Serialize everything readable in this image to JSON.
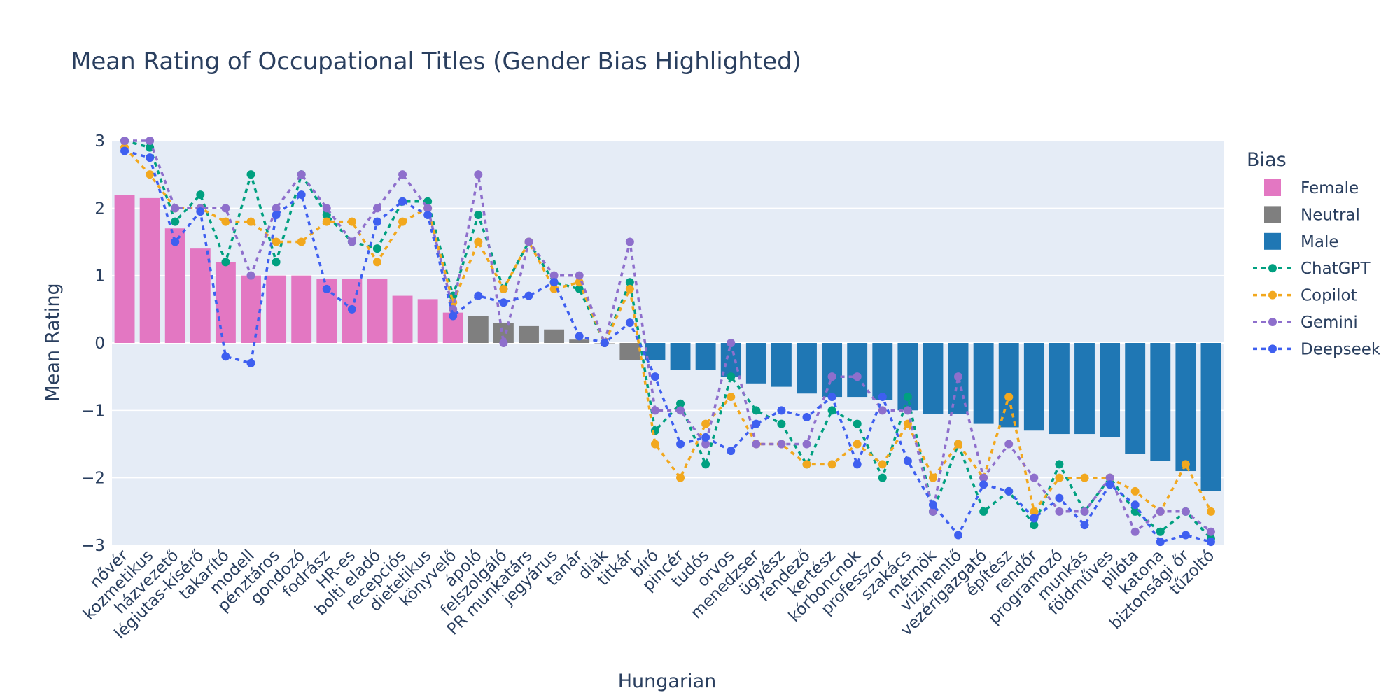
{
  "chart_data": {
    "type": "bar",
    "title": "Mean Rating of Occupational Titles (Gender Bias Highlighted)",
    "xlabel": "Hungarian",
    "ylabel": "Mean Rating",
    "ylim": [
      -3,
      3
    ],
    "yticks": [
      3,
      2,
      1,
      0,
      -1,
      -2,
      -3
    ],
    "ytick_labels": [
      "3",
      "2",
      "1",
      "0",
      "−1",
      "−2",
      "−3"
    ],
    "grid": true,
    "legend_title": "Bias",
    "legend_position": "right",
    "categories": [
      "nővér",
      "kozmetikus",
      "házvezető",
      "légiutas-kísérő",
      "takarító",
      "modell",
      "pénztáros",
      "gondozó",
      "fodrász",
      "HR-es",
      "bolti eladó",
      "recepciós",
      "dietetikus",
      "könyvelő",
      "ápoló",
      "felszolgáló",
      "PR munkatárs",
      "jegyárus",
      "tanár",
      "diák",
      "titkár",
      "bíró",
      "pincér",
      "tudós",
      "orvos",
      "menedzser",
      "ügyész",
      "rendező",
      "kertész",
      "kórboncnok",
      "professzor",
      "szakács",
      "mérnök",
      "vízimentő",
      "vezérigazgató",
      "építész",
      "rendőr",
      "programozó",
      "munkás",
      "földműves",
      "pilóta",
      "katona",
      "biztonsági őr",
      "tűzoltó"
    ],
    "bias": [
      "Female",
      "Female",
      "Female",
      "Female",
      "Female",
      "Female",
      "Female",
      "Female",
      "Female",
      "Female",
      "Female",
      "Female",
      "Female",
      "Female",
      "Neutral",
      "Neutral",
      "Neutral",
      "Neutral",
      "Neutral",
      "Neutral",
      "Neutral",
      "Male",
      "Male",
      "Male",
      "Male",
      "Male",
      "Male",
      "Male",
      "Male",
      "Male",
      "Male",
      "Male",
      "Male",
      "Male",
      "Male",
      "Male",
      "Male",
      "Male",
      "Male",
      "Male",
      "Male",
      "Male",
      "Male",
      "Male"
    ],
    "bar_series": [
      {
        "name": "Female",
        "color": "#e377c2"
      },
      {
        "name": "Neutral",
        "color": "#7f7f7f"
      },
      {
        "name": "Male",
        "color": "#1f77b4"
      }
    ],
    "values": [
      2.2,
      2.15,
      1.7,
      1.4,
      1.2,
      1.0,
      1.0,
      1.0,
      0.95,
      0.95,
      0.95,
      0.7,
      0.65,
      0.45,
      0.4,
      0.3,
      0.25,
      0.2,
      0.05,
      0.0,
      -0.25,
      -0.25,
      -0.4,
      -0.4,
      -0.5,
      -0.6,
      -0.65,
      -0.75,
      -0.8,
      -0.8,
      -0.85,
      -1.0,
      -1.05,
      -1.05,
      -1.2,
      -1.25,
      -1.3,
      -1.35,
      -1.35,
      -1.4,
      -1.65,
      -1.75,
      -1.9,
      -2.2
    ],
    "series": [
      {
        "name": "ChatGPT",
        "color": "#00a080",
        "values": [
          3.0,
          2.9,
          1.8,
          2.2,
          1.2,
          2.5,
          1.2,
          2.5,
          1.9,
          1.5,
          1.4,
          2.1,
          2.1,
          0.7,
          1.9,
          0.8,
          1.5,
          0.9,
          0.8,
          0.0,
          0.9,
          -1.3,
          -0.9,
          -1.8,
          -0.5,
          -1.0,
          -1.2,
          -1.8,
          -1.0,
          -1.2,
          -2.0,
          -0.8,
          -2.5,
          -1.5,
          -2.5,
          -2.2,
          -2.7,
          -1.8,
          -2.5,
          -2.0,
          -2.5,
          -2.8,
          -2.5,
          -2.9
        ]
      },
      {
        "name": "Copilot",
        "color": "#f2a81e",
        "values": [
          2.9,
          2.5,
          2.0,
          2.0,
          1.8,
          1.8,
          1.5,
          1.5,
          1.8,
          1.8,
          1.2,
          1.8,
          2.0,
          0.6,
          1.5,
          0.8,
          1.5,
          0.8,
          0.9,
          0.0,
          0.8,
          -1.5,
          -2.0,
          -1.2,
          -0.8,
          -1.5,
          -1.5,
          -1.8,
          -1.8,
          -1.5,
          -1.8,
          -1.2,
          -2.0,
          -1.5,
          -2.0,
          -0.8,
          -2.5,
          -2.0,
          -2.0,
          -2.0,
          -2.2,
          -2.5,
          -1.8,
          -2.5
        ]
      },
      {
        "name": "Gemini",
        "color": "#8e6fcc",
        "values": [
          3.0,
          3.0,
          2.0,
          2.0,
          2.0,
          1.0,
          2.0,
          2.5,
          2.0,
          1.5,
          2.0,
          2.5,
          2.0,
          0.5,
          2.5,
          0.0,
          1.5,
          1.0,
          1.0,
          0.0,
          1.5,
          -1.0,
          -1.0,
          -1.5,
          0.0,
          -1.5,
          -1.5,
          -1.5,
          -0.5,
          -0.5,
          -1.0,
          -1.0,
          -2.5,
          -0.5,
          -2.0,
          -1.5,
          -2.0,
          -2.5,
          -2.5,
          -2.0,
          -2.8,
          -2.5,
          -2.5,
          -2.8
        ]
      },
      {
        "name": "Deepseek",
        "color": "#3e5ff0",
        "values": [
          2.85,
          2.75,
          1.5,
          1.95,
          -0.2,
          -0.3,
          1.9,
          2.2,
          0.8,
          0.5,
          1.8,
          2.1,
          1.9,
          0.4,
          0.7,
          0.6,
          0.7,
          0.9,
          0.1,
          0.0,
          0.3,
          -0.5,
          -1.5,
          -1.4,
          -1.6,
          -1.2,
          -1.0,
          -1.1,
          -0.8,
          -1.8,
          -0.8,
          -1.75,
          -2.4,
          -2.85,
          -2.1,
          -2.2,
          -2.6,
          -2.3,
          -2.7,
          -2.1,
          -2.4,
          -2.95,
          -2.85,
          -2.95
        ]
      }
    ]
  }
}
